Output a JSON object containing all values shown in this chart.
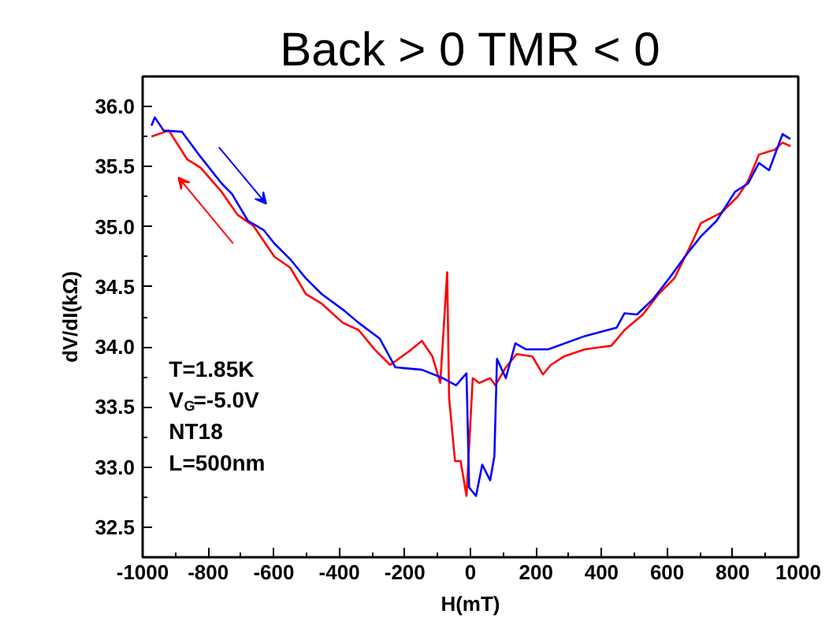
{
  "chart_data": {
    "type": "line",
    "title": "Back > 0 TMR < 0",
    "xlabel": "H(mT)",
    "ylabel": "dV/dI(kΩ)",
    "xlim": [
      -1000,
      1000
    ],
    "ylim": [
      32.25,
      36.25
    ],
    "xticks": [
      -1000,
      -800,
      -600,
      -400,
      -200,
      0,
      200,
      400,
      600,
      800,
      1000
    ],
    "yticks": [
      32.5,
      {
        "value": 33,
        "label": "33.0"
      },
      33.5,
      {
        "value": 34,
        "label": "34.0"
      },
      34.5,
      {
        "value": 35,
        "label": "35.0"
      },
      35.5,
      {
        "value": 36,
        "label": "36.0"
      }
    ],
    "grid": false,
    "marker": "none",
    "line_style": "solid",
    "annotations": [
      "T=1.85K",
      "V$_{G}$=-5.0V",
      "NT18",
      "L=500nm"
    ],
    "series": [
      {
        "color": "#ff0000",
        "x": [
          -973,
          -920,
          -864,
          -823,
          -759,
          -711,
          -663,
          -598,
          -550,
          -502,
          -454,
          -389,
          -341,
          -293,
          -245,
          -189,
          -148,
          -116,
          -92,
          -71,
          -65,
          -47,
          -30,
          -12,
          7,
          27,
          60,
          76,
          108,
          141,
          189,
          221,
          245,
          285,
          349,
          430,
          470,
          526,
          574,
          622,
          671,
          703,
          767,
          815,
          847,
          880,
          928,
          952,
          976
        ],
        "values": [
          35.75,
          35.8,
          35.56,
          35.49,
          35.29,
          35.1,
          35.01,
          34.75,
          34.66,
          34.44,
          34.36,
          34.2,
          34.14,
          33.98,
          33.85,
          33.96,
          34.05,
          33.92,
          33.7,
          34.62,
          33.57,
          33.05,
          33.05,
          32.76,
          33.74,
          33.7,
          33.74,
          33.68,
          33.83,
          33.94,
          33.92,
          33.77,
          33.85,
          33.92,
          33.98,
          34.01,
          34.14,
          34.27,
          34.44,
          34.57,
          34.84,
          35.03,
          35.12,
          35.25,
          35.38,
          35.6,
          35.64,
          35.7,
          35.67
        ]
      },
      {
        "color": "#0000ff",
        "x": [
          -973,
          -963,
          -936,
          -880,
          -823,
          -759,
          -727,
          -679,
          -630,
          -598,
          -550,
          -502,
          -454,
          -389,
          -341,
          -277,
          -229,
          -148,
          -84,
          -44,
          -12,
          -4,
          17,
          36,
          60,
          73,
          81,
          108,
          137,
          169,
          237,
          349,
          446,
          470,
          508,
          558,
          606,
          654,
          703,
          751,
          807,
          847,
          880,
          911,
          952,
          976
        ],
        "values": [
          35.84,
          35.91,
          35.8,
          35.79,
          35.58,
          35.36,
          35.27,
          35.05,
          34.97,
          34.86,
          34.73,
          34.57,
          34.44,
          34.31,
          34.2,
          34.07,
          33.83,
          33.81,
          33.74,
          33.68,
          33.78,
          32.83,
          32.76,
          33.02,
          32.89,
          33.09,
          33.9,
          33.74,
          34.03,
          33.98,
          33.98,
          34.09,
          34.16,
          34.28,
          34.27,
          34.4,
          34.57,
          34.75,
          34.92,
          35.05,
          35.29,
          35.36,
          35.53,
          35.47,
          35.77,
          35.73
        ]
      }
    ]
  }
}
